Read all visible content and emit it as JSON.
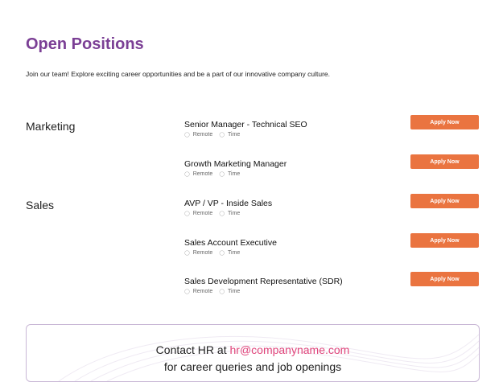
{
  "page": {
    "title": "Open Positions",
    "intro": "Join our team! Explore exciting career opportunities and be a part of our innovative company culture."
  },
  "departments": [
    {
      "name": "Marketing"
    },
    {
      "name": "Sales"
    }
  ],
  "jobs": [
    {
      "title": "Senior Manager - Technical SEO",
      "location": "Remote",
      "time": "Time",
      "button": "Apply Now"
    },
    {
      "title": "Growth Marketing Manager",
      "location": "Remote",
      "time": "Time",
      "button": "Apply Now"
    },
    {
      "title": "AVP / VP - Inside Sales",
      "location": "Remote",
      "time": "Time",
      "button": "Apply Now"
    },
    {
      "title": "Sales Account Executive",
      "location": "Remote",
      "time": "Time",
      "button": "Apply Now"
    },
    {
      "title": "Sales Development Representative (SDR)",
      "location": "Remote",
      "time": "Time",
      "button": "Apply Now"
    }
  ],
  "contact": {
    "prefix": "Contact HR at",
    "email": "hr@companyname.com",
    "suffix": "for career queries and job openings"
  },
  "colors": {
    "title": "#7b3f95",
    "button": "#ea7440",
    "email": "#e0457b"
  }
}
